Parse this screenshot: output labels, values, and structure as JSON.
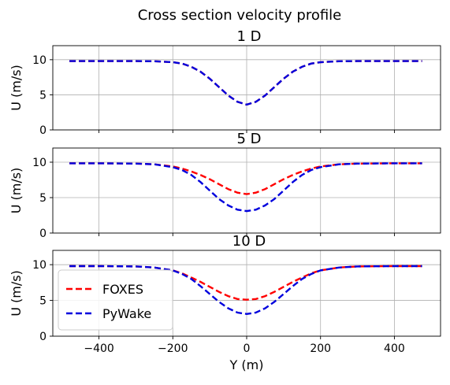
{
  "figure": {
    "title": "Cross section velocity profile"
  },
  "chart_data": [
    {
      "type": "line",
      "title": "1 D",
      "xlabel": "",
      "ylabel": "U (m/s)",
      "xlim": [
        -525,
        525
      ],
      "ylim": [
        0,
        12
      ],
      "x_ticks": [
        -400,
        -200,
        0,
        200,
        400
      ],
      "y_ticks": [
        0,
        5,
        10
      ],
      "grid": true,
      "series": [
        {
          "name": "FOXES",
          "color": "#ff0000",
          "dash": "dashed",
          "x": [
            -480,
            -400,
            -300,
            -250,
            -200,
            -175,
            -150,
            -125,
            -100,
            -75,
            -50,
            -25,
            0,
            25,
            50,
            75,
            100,
            125,
            150,
            175,
            200,
            250,
            300,
            400,
            475
          ],
          "y": [
            9.8,
            9.8,
            9.8,
            9.78,
            9.65,
            9.45,
            9.0,
            8.3,
            7.3,
            6.1,
            4.9,
            4.0,
            3.6,
            4.0,
            4.9,
            6.1,
            7.3,
            8.3,
            9.0,
            9.45,
            9.65,
            9.78,
            9.8,
            9.8,
            9.8
          ]
        },
        {
          "name": "PyWake",
          "color": "#0000dd",
          "dash": "dashed",
          "x": [
            -480,
            -400,
            -300,
            -250,
            -200,
            -175,
            -150,
            -125,
            -100,
            -75,
            -50,
            -25,
            0,
            25,
            50,
            75,
            100,
            125,
            150,
            175,
            200,
            250,
            300,
            400,
            475
          ],
          "y": [
            9.8,
            9.8,
            9.8,
            9.78,
            9.65,
            9.45,
            9.0,
            8.3,
            7.3,
            6.1,
            4.9,
            4.0,
            3.6,
            4.0,
            4.9,
            6.1,
            7.3,
            8.3,
            9.0,
            9.45,
            9.65,
            9.78,
            9.8,
            9.8,
            9.8
          ]
        }
      ]
    },
    {
      "type": "line",
      "title": "5 D",
      "xlabel": "",
      "ylabel": "U (m/s)",
      "xlim": [
        -525,
        525
      ],
      "ylim": [
        0,
        12
      ],
      "x_ticks": [
        -400,
        -200,
        0,
        200,
        400
      ],
      "y_ticks": [
        0,
        5,
        10
      ],
      "grid": true,
      "series": [
        {
          "name": "FOXES",
          "color": "#ff0000",
          "dash": "dashed",
          "x": [
            -480,
            -400,
            -300,
            -250,
            -200,
            -175,
            -150,
            -125,
            -100,
            -75,
            -50,
            -25,
            0,
            25,
            50,
            75,
            100,
            125,
            150,
            175,
            200,
            250,
            300,
            400,
            475
          ],
          "y": [
            9.85,
            9.85,
            9.8,
            9.7,
            9.4,
            9.1,
            8.7,
            8.2,
            7.6,
            6.9,
            6.2,
            5.7,
            5.5,
            5.7,
            6.2,
            6.9,
            7.6,
            8.2,
            8.7,
            9.1,
            9.4,
            9.7,
            9.8,
            9.85,
            9.85
          ]
        },
        {
          "name": "PyWake",
          "color": "#0000dd",
          "dash": "dashed",
          "x": [
            -480,
            -400,
            -300,
            -250,
            -200,
            -175,
            -150,
            -125,
            -100,
            -75,
            -50,
            -25,
            0,
            25,
            50,
            75,
            100,
            125,
            150,
            175,
            200,
            250,
            300,
            400,
            475
          ],
          "y": [
            9.85,
            9.85,
            9.8,
            9.7,
            9.3,
            8.9,
            8.2,
            7.2,
            6.0,
            4.8,
            3.9,
            3.3,
            3.1,
            3.3,
            3.9,
            4.8,
            6.0,
            7.2,
            8.2,
            8.9,
            9.3,
            9.7,
            9.8,
            9.85,
            9.85
          ]
        }
      ]
    },
    {
      "type": "line",
      "title": "10 D",
      "xlabel": "Y (m)",
      "ylabel": "U (m/s)",
      "xlim": [
        -525,
        525
      ],
      "ylim": [
        0,
        12
      ],
      "x_ticks": [
        -400,
        -200,
        0,
        200,
        400
      ],
      "y_ticks": [
        0,
        5,
        10
      ],
      "grid": true,
      "legend": {
        "placement": "lower-left",
        "entries": [
          "FOXES",
          "PyWake"
        ]
      },
      "series": [
        {
          "name": "FOXES",
          "color": "#ff0000",
          "dash": "dashed",
          "x": [
            -480,
            -400,
            -300,
            -250,
            -200,
            -175,
            -150,
            -125,
            -100,
            -75,
            -50,
            -25,
            0,
            25,
            50,
            75,
            100,
            125,
            150,
            175,
            200,
            250,
            300,
            400,
            475
          ],
          "y": [
            9.8,
            9.8,
            9.75,
            9.6,
            9.2,
            8.8,
            8.2,
            7.6,
            6.9,
            6.2,
            5.6,
            5.2,
            5.1,
            5.2,
            5.6,
            6.2,
            6.9,
            7.6,
            8.2,
            8.8,
            9.2,
            9.6,
            9.75,
            9.8,
            9.8
          ]
        },
        {
          "name": "PyWake",
          "color": "#0000dd",
          "dash": "dashed",
          "x": [
            -480,
            -400,
            -300,
            -250,
            -200,
            -175,
            -150,
            -125,
            -100,
            -75,
            -50,
            -25,
            0,
            25,
            50,
            75,
            100,
            125,
            150,
            175,
            200,
            250,
            300,
            400,
            475
          ],
          "y": [
            9.8,
            9.8,
            9.75,
            9.6,
            9.2,
            8.7,
            8.0,
            7.0,
            5.9,
            4.8,
            3.9,
            3.3,
            3.1,
            3.3,
            3.9,
            4.8,
            5.9,
            7.0,
            8.0,
            8.7,
            9.2,
            9.6,
            9.75,
            9.8,
            9.8
          ]
        }
      ]
    }
  ]
}
